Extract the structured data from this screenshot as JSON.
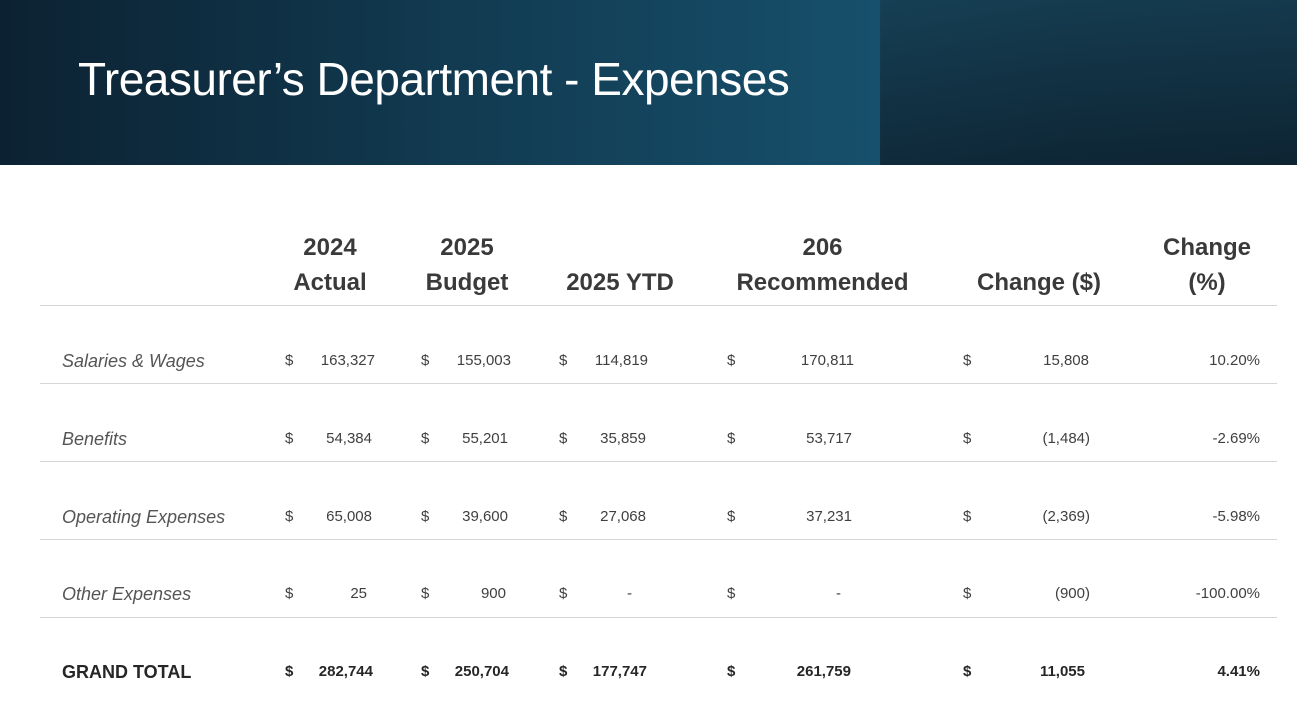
{
  "title": "Treasurer’s Department - Expenses",
  "headers": {
    "actual": [
      "2024",
      "Actual"
    ],
    "budget": [
      "2025",
      "Budget"
    ],
    "ytd": [
      "2025 YTD"
    ],
    "recommended": [
      "206",
      "Recommended"
    ],
    "change_dollar": [
      "Change ($)"
    ],
    "change_pct": [
      "Change",
      "(%)"
    ]
  },
  "currency_symbol": "$",
  "rows": [
    {
      "label": "Salaries & Wages",
      "actual": "163,327",
      "budget": "155,003",
      "ytd": "114,819",
      "recommended": "170,811",
      "change_dollar": "15,808",
      "change_pct": "10.20%"
    },
    {
      "label": "Benefits",
      "actual": "54,384",
      "budget": "55,201",
      "ytd": "35,859",
      "recommended": "53,717",
      "change_dollar": "(1,484)",
      "change_pct": "-2.69%"
    },
    {
      "label": "Operating Expenses",
      "actual": "65,008",
      "budget": "39,600",
      "ytd": "27,068",
      "recommended": "37,231",
      "change_dollar": "(2,369)",
      "change_pct": "-5.98%"
    },
    {
      "label": "Other Expenses",
      "actual": "25",
      "budget": "900",
      "ytd": "-",
      "recommended": "-",
      "change_dollar": "(900)",
      "change_pct": "-100.00%"
    }
  ],
  "total": {
    "label": "GRAND TOTAL",
    "actual": "282,744",
    "budget": "250,704",
    "ytd": "177,747",
    "recommended": "261,759",
    "change_dollar": "11,055",
    "change_pct": "4.41%"
  }
}
